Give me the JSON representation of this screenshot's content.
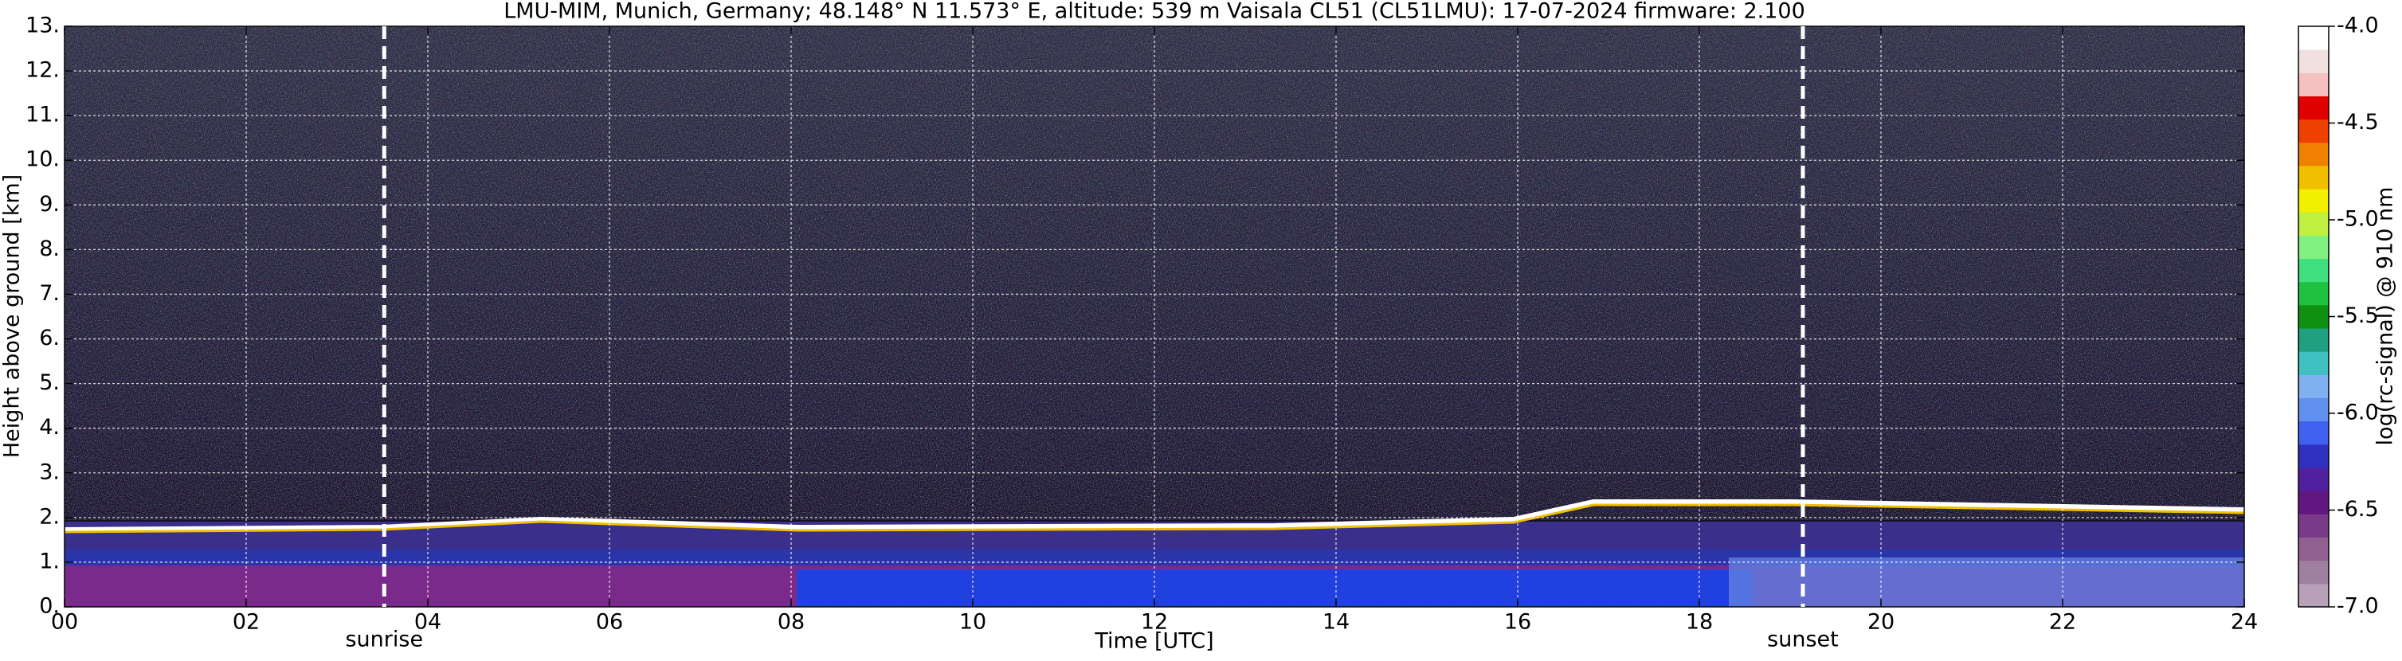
{
  "chart_data": {
    "type": "heatmap",
    "title": "LMU-MIM, Munich, Germany; 48.148° N 11.573° E, altitude: 539 m    Vaisala CL51 (CL51LMU): 17-07-2024    firmware: 2.100",
    "xlabel": "Time [UTC]",
    "ylabel": "Height above ground [km]",
    "xlim": [
      0,
      24
    ],
    "xticks": [
      {
        "value": 0,
        "label": "00"
      },
      {
        "value": 2,
        "label": "02"
      },
      {
        "value": 4,
        "label": "04"
      },
      {
        "value": 6,
        "label": "06"
      },
      {
        "value": 8,
        "label": "08"
      },
      10,
      12,
      14,
      16,
      18,
      20,
      22,
      24
    ],
    "ylim": [
      0,
      13
    ],
    "yticks": [
      {
        "value": 0,
        "label": "0."
      },
      {
        "value": 1,
        "label": "1."
      },
      {
        "value": 2,
        "label": "2."
      },
      {
        "value": 3,
        "label": "3."
      },
      {
        "value": 4,
        "label": "4."
      },
      {
        "value": 5,
        "label": "5."
      },
      {
        "value": 6,
        "label": "6."
      },
      {
        "value": 7,
        "label": "7."
      },
      {
        "value": 8,
        "label": "8."
      },
      {
        "value": 9,
        "label": "9."
      },
      {
        "value": 10,
        "label": "10."
      },
      {
        "value": 11,
        "label": "11."
      },
      {
        "value": 12,
        "label": "12."
      },
      {
        "value": 13,
        "label": "13."
      }
    ],
    "grid": true,
    "annotations": [
      {
        "text": "sunrise",
        "x": 3.52
      },
      {
        "text": "sunset",
        "x": 19.14
      }
    ],
    "colorbar": {
      "label": "log(rc-signal) @ 910 nm",
      "lim": [
        -7,
        -4
      ],
      "ticks": [
        {
          "value": -4,
          "label": "-4.0"
        },
        {
          "value": -4.5,
          "label": "-4.5"
        },
        {
          "value": -5,
          "label": "-5.0"
        },
        {
          "value": -5.5,
          "label": "-5.5"
        },
        {
          "value": -6,
          "label": "-6.0"
        },
        {
          "value": -6.5,
          "label": "-6.5"
        },
        {
          "value": -7,
          "label": "-7.0"
        }
      ],
      "colors": [
        "#b8a0b8",
        "#a080a0",
        "#906090",
        "#7a3a8a",
        "#601880",
        "#5020a0",
        "#3030c0",
        "#4060f0",
        "#6090f0",
        "#80b0f0",
        "#40c0c0",
        "#20a080",
        "#109010",
        "#20c040",
        "#40e080",
        "#80f080",
        "#c0f040",
        "#f0f000",
        "#f0c000",
        "#f08000",
        "#f04000",
        "#e00000",
        "#f4c0c0",
        "#f0e0e0",
        "#ffffff"
      ]
    }
  }
}
